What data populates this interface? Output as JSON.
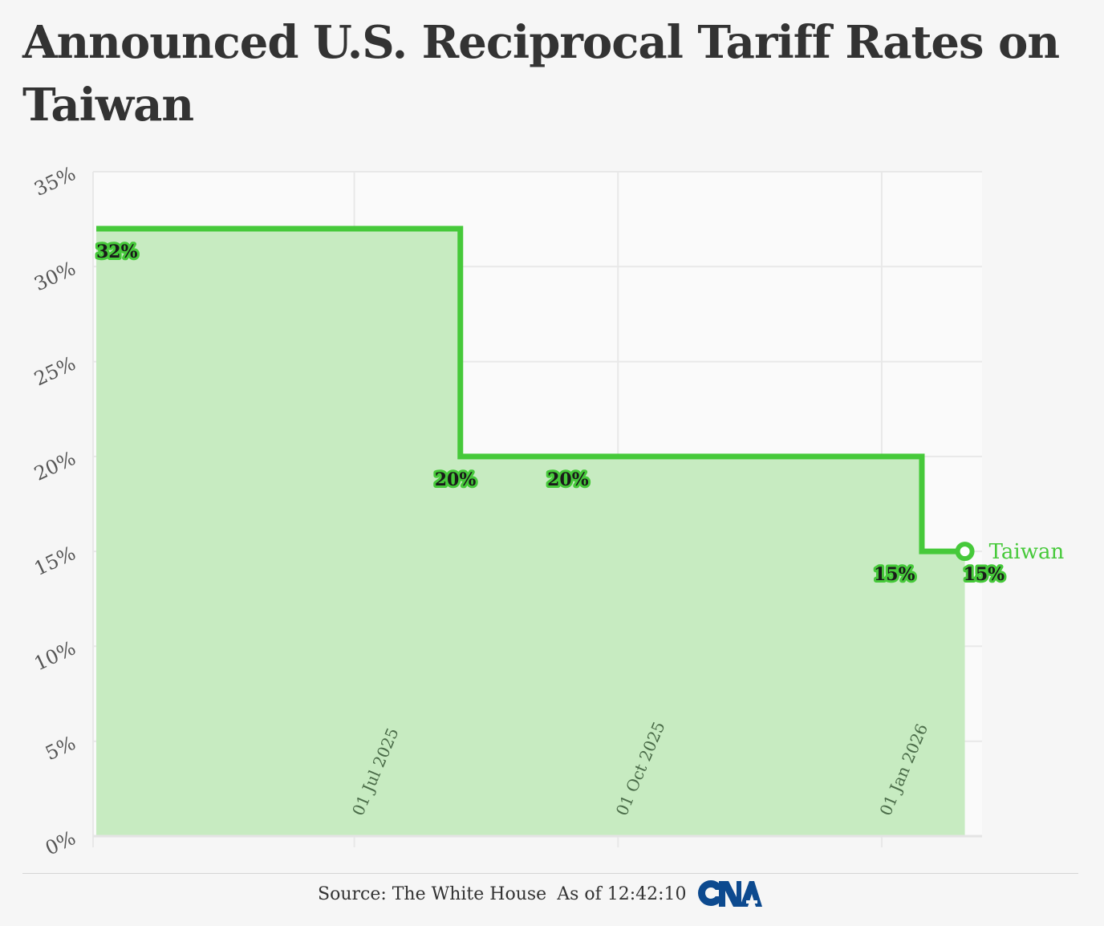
{
  "title": "Announced U.S. Reciprocal Tariff Rates on Taiwan",
  "footer": {
    "source": "Source: The White House",
    "as_of": "As of 12:42:10"
  },
  "logo": {
    "icon": "cna-logo-icon",
    "color": "#0d4a8f"
  },
  "colors": {
    "line": "#46c93a",
    "fill": "#c7ebc1",
    "label_stroke": "#46c93a",
    "label_text": "#1a1a1a",
    "series_label": "#46c93a",
    "axis_text": "#555555",
    "grid": "#e8e8e8"
  },
  "chart_data": {
    "type": "area",
    "step": "after",
    "series": [
      {
        "name": "Taiwan",
        "points": [
          {
            "x": "2025-04-02",
            "y": 32
          },
          {
            "x": "2025-08-07",
            "y": 20
          },
          {
            "x": "2026-01-15",
            "y": 15
          },
          {
            "x": "2026-01-30",
            "y": 15
          }
        ]
      }
    ],
    "data_labels": [
      {
        "x": "2025-04-02",
        "y": 32,
        "text": "32%"
      },
      {
        "x": "2025-08-07",
        "y": 20,
        "text": "20%"
      },
      {
        "x": "2025-09-22",
        "y": 20,
        "text": "20%"
      },
      {
        "x": "2026-01-15",
        "y": 15,
        "text": "15%"
      },
      {
        "x": "2026-01-30",
        "y": 15,
        "text": "15%"
      }
    ],
    "xlim": [
      "2025-04-02",
      "2026-02-05"
    ],
    "ylim": [
      0,
      35
    ],
    "x_ticks": [
      {
        "value": "2025-07-01",
        "label": "01 Jul 2025"
      },
      {
        "value": "2025-10-01",
        "label": "01 Oct 2025"
      },
      {
        "value": "2026-01-01",
        "label": "01 Jan 2026"
      }
    ],
    "y_ticks": [
      {
        "value": 0,
        "label": "0%"
      },
      {
        "value": 5,
        "label": "5%"
      },
      {
        "value": 10,
        "label": "10%"
      },
      {
        "value": 15,
        "label": "15%"
      },
      {
        "value": 20,
        "label": "20%"
      },
      {
        "value": 25,
        "label": "25%"
      },
      {
        "value": 30,
        "label": "30%"
      },
      {
        "value": 35,
        "label": "35%"
      }
    ],
    "grid": true,
    "end_label": "Taiwan"
  }
}
